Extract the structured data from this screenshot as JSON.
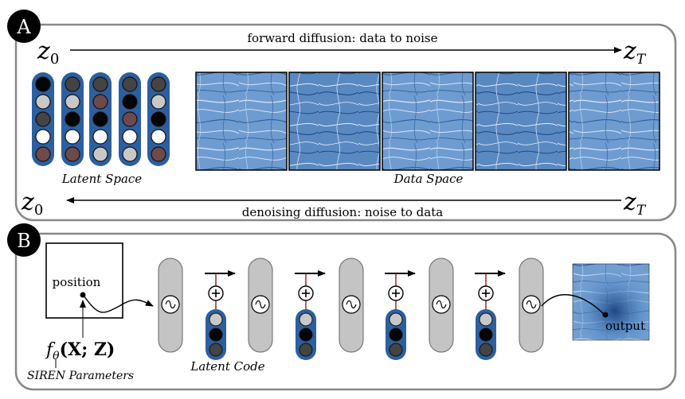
{
  "panel_a": {
    "badge": "A",
    "z_start": "z",
    "z_start_sub": "0",
    "z_end": "z",
    "z_end_sub": "T",
    "forward_label": "forward diffusion: data to noise",
    "denoising_label": "denoising diffusion: noise to data",
    "latent_space_label": "Latent Space",
    "data_space_label": "Data Space",
    "latent_vectors": [
      [
        "#050505",
        "#c8c8c8",
        "#444444",
        "#ffffff",
        "#6e4a4a"
      ],
      [
        "#444444",
        "#c8c8c8",
        "#050505",
        "#ffffff",
        "#6e4a4a"
      ],
      [
        "#444444",
        "#6e4a4a",
        "#050505",
        "#ffffff",
        "#c8c8c8"
      ],
      [
        "#444444",
        "#050505",
        "#6e4a4a",
        "#ffffff",
        "#c8c8c8"
      ],
      [
        "#444444",
        "#c8c8c8",
        "#050505",
        "#ffffff",
        "#6e4a4a"
      ]
    ]
  },
  "panel_b": {
    "badge": "B",
    "position_label": "position",
    "function_label": "f",
    "function_sub": "θ",
    "function_args": "(X; Z)",
    "siren_label": "SIREN Parameters",
    "latent_code_label": "Latent Code",
    "output_label": "output",
    "sine_symbol": "~",
    "plus_symbol": "+",
    "latent_code_colors": [
      "#c8c8c8",
      "#050505",
      "#444444"
    ]
  },
  "colors": {
    "vector_blue": "#2c5f9e",
    "panel_border": "#888888",
    "pill_gray": "#c4c4c4",
    "connector_red": "#9e2a2a",
    "texture_blue": "#4a7cb8"
  }
}
